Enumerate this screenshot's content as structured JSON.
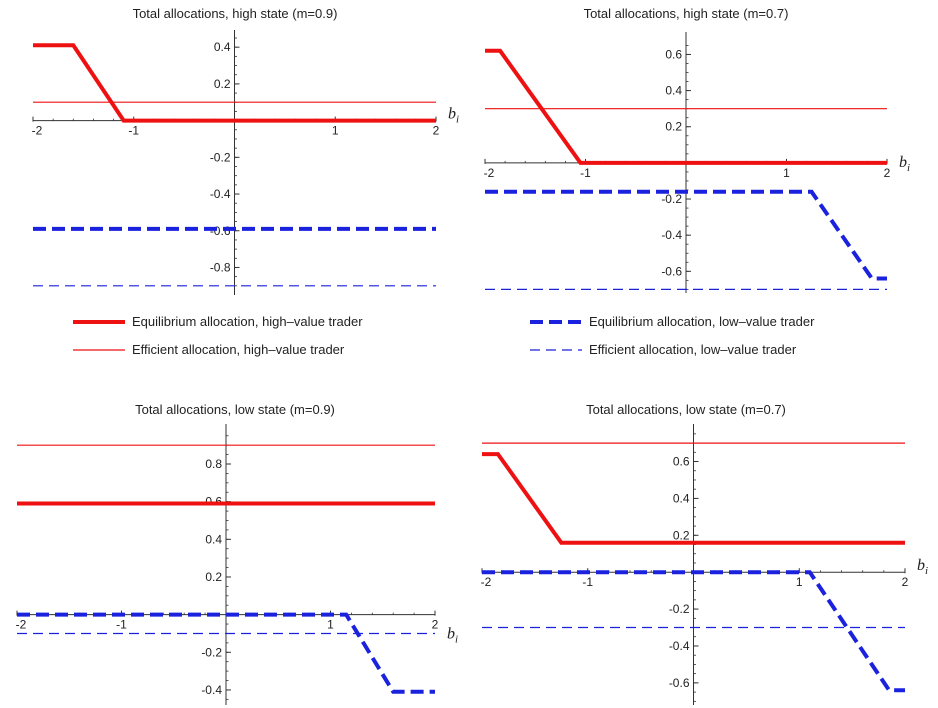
{
  "colors": {
    "high_value": "#ee1111",
    "low_value": "#1a22dd",
    "axis": "#333333"
  },
  "chart_data": [
    {
      "type": "line",
      "title": "Total allocations, high state (m=0.9)",
      "xlabel": "b",
      "xlabel_sub": "i",
      "xlim": [
        -2,
        2
      ],
      "ylim": [
        -0.95,
        0.45
      ],
      "xticks": [
        -2,
        -1,
        1,
        2
      ],
      "yticks": [
        -0.8,
        -0.6,
        -0.4,
        -0.2,
        0.2,
        0.4
      ],
      "series": [
        {
          "key": "eq_high",
          "x": [
            -2,
            -1.6,
            -1.1,
            2
          ],
          "y": [
            0.41,
            0.41,
            0.0,
            0.0
          ]
        },
        {
          "key": "eff_high",
          "x": [
            -2,
            2
          ],
          "y": [
            0.1,
            0.1
          ]
        },
        {
          "key": "eq_low",
          "x": [
            -2,
            2
          ],
          "y": [
            -0.59,
            -0.59
          ]
        },
        {
          "key": "eff_low",
          "x": [
            -2,
            2
          ],
          "y": [
            -0.9,
            -0.9
          ]
        }
      ]
    },
    {
      "type": "line",
      "title": "Total allocations, high state (m=0.7)",
      "xlabel": "b",
      "xlabel_sub": "i",
      "xlim": [
        -2,
        2
      ],
      "ylim": [
        -0.72,
        0.68
      ],
      "xticks": [
        -2,
        -1,
        1,
        2
      ],
      "yticks": [
        -0.6,
        -0.4,
        -0.2,
        0.2,
        0.4,
        0.6
      ],
      "series": [
        {
          "key": "eq_high",
          "x": [
            -2,
            -1.85,
            -1.05,
            2
          ],
          "y": [
            0.62,
            0.62,
            0.0,
            0.0
          ]
        },
        {
          "key": "eff_high",
          "x": [
            -2,
            2
          ],
          "y": [
            0.3,
            0.3
          ]
        },
        {
          "key": "eq_low",
          "x": [
            -2,
            1.25,
            1.85,
            2
          ],
          "y": [
            -0.16,
            -0.16,
            -0.64,
            -0.64
          ]
        },
        {
          "key": "eff_low",
          "x": [
            -2,
            2
          ],
          "y": [
            -0.7,
            -0.7
          ]
        }
      ]
    },
    {
      "type": "line",
      "title": "Total allocations, low state (m=0.9)",
      "xlabel": "b",
      "xlabel_sub": "i",
      "xlim": [
        -2,
        2
      ],
      "ylim": [
        -0.48,
        0.97
      ],
      "xticks": [
        -2,
        -1,
        1,
        2
      ],
      "yticks": [
        -0.4,
        -0.2,
        0.2,
        0.4,
        0.6,
        0.8
      ],
      "series": [
        {
          "key": "eq_high",
          "x": [
            -2,
            2
          ],
          "y": [
            0.59,
            0.59
          ]
        },
        {
          "key": "eff_high",
          "x": [
            -2,
            2
          ],
          "y": [
            0.9,
            0.9
          ]
        },
        {
          "key": "eq_low",
          "x": [
            -2,
            1.15,
            1.6,
            2
          ],
          "y": [
            0.0,
            0.0,
            -0.41,
            -0.41
          ]
        },
        {
          "key": "eff_low",
          "x": [
            -2,
            2
          ],
          "y": [
            -0.1,
            -0.1
          ]
        }
      ]
    },
    {
      "type": "line",
      "title": "Total allocations, low state (m=0.7)",
      "xlabel": "b",
      "xlabel_sub": "i",
      "xlim": [
        -2,
        2
      ],
      "ylim": [
        -0.72,
        0.76
      ],
      "xticks": [
        -2,
        -1,
        1,
        2
      ],
      "yticks": [
        -0.6,
        -0.4,
        -0.2,
        0.2,
        0.4,
        0.6
      ],
      "series": [
        {
          "key": "eq_high",
          "x": [
            -2,
            -1.85,
            -1.25,
            2
          ],
          "y": [
            0.64,
            0.64,
            0.16,
            0.16
          ]
        },
        {
          "key": "eff_high",
          "x": [
            -2,
            2
          ],
          "y": [
            0.7,
            0.7
          ]
        },
        {
          "key": "eq_low",
          "x": [
            -2,
            1.1,
            1.85,
            2
          ],
          "y": [
            0.0,
            0.0,
            -0.64,
            -0.64
          ]
        },
        {
          "key": "eff_low",
          "x": [
            -2,
            2
          ],
          "y": [
            -0.3,
            -0.3
          ]
        }
      ]
    }
  ],
  "series_styles": {
    "eq_high": {
      "color_key": "high_value",
      "weight": "thick",
      "dash": "solid"
    },
    "eff_high": {
      "color_key": "high_value",
      "weight": "thin",
      "dash": "solid"
    },
    "eq_low": {
      "color_key": "low_value",
      "weight": "thick",
      "dash": "dashed"
    },
    "eff_low": {
      "color_key": "low_value",
      "weight": "thin",
      "dash": "dashed"
    }
  },
  "legend": {
    "placement": "middle",
    "items": [
      {
        "key": "eq_high",
        "label": "Equilibrium allocation, high–value trader"
      },
      {
        "key": "eff_high",
        "label": "Efficient allocation, high–value trader"
      },
      {
        "key": "eq_low",
        "label": "Equilibrium allocation, low–value trader"
      },
      {
        "key": "eff_low",
        "label": "Efficient allocation, low–value trader"
      }
    ]
  }
}
